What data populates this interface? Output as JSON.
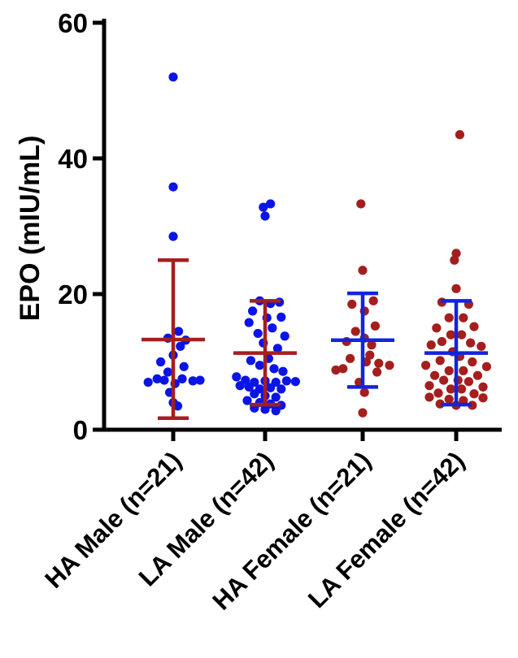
{
  "chart_data": {
    "type": "scatter",
    "ylabel": "EPO (mIU/mL)",
    "ylim": [
      0,
      60
    ],
    "yticks": [
      0,
      20,
      40,
      60
    ],
    "grid": false,
    "categories": [
      "HA Male (n=21)",
      "LA Male (n=42)",
      "HA Female (n=21)",
      "LA Female (n=42)"
    ],
    "series": [
      {
        "point_color": "#0a14e6",
        "bar_color": "#a51e1e",
        "mean": 13.3,
        "sd_low": 1.7,
        "sd_high": 25.0,
        "points": [
          {
            "x": 0.0,
            "y": 52.0
          },
          {
            "x": 0.0,
            "y": 35.8
          },
          {
            "x": 0.0,
            "y": 28.5
          },
          {
            "x": 0.06,
            "y": 14.5
          },
          {
            "x": -0.06,
            "y": 13.5
          },
          {
            "x": 0.14,
            "y": 13.2
          },
          {
            "x": 0.08,
            "y": 12.3
          },
          {
            "x": 0.0,
            "y": 11.0
          },
          {
            "x": -0.14,
            "y": 10.0
          },
          {
            "x": 0.12,
            "y": 9.3
          },
          {
            "x": -0.06,
            "y": 8.5
          },
          {
            "x": -0.18,
            "y": 7.5
          },
          {
            "x": -0.1,
            "y": 7.3
          },
          {
            "x": 0.1,
            "y": 7.5
          },
          {
            "x": 0.22,
            "y": 7.2
          },
          {
            "x": 0.3,
            "y": 7.3
          },
          {
            "x": -0.28,
            "y": 7.0
          },
          {
            "x": 0.02,
            "y": 6.8
          },
          {
            "x": -0.04,
            "y": 5.5
          },
          {
            "x": 0.0,
            "y": 4.0
          },
          {
            "x": 0.05,
            "y": 3.5
          }
        ]
      },
      {
        "point_color": "#0a14e6",
        "bar_color": "#a51e1e",
        "mean": 11.3,
        "sd_low": 3.7,
        "sd_high": 19.0,
        "points": [
          {
            "x": 0.06,
            "y": 33.3
          },
          {
            "x": -0.02,
            "y": 32.8
          },
          {
            "x": 0.0,
            "y": 31.5
          },
          {
            "x": -0.06,
            "y": 19.0
          },
          {
            "x": 0.06,
            "y": 18.6
          },
          {
            "x": 0.16,
            "y": 18.8
          },
          {
            "x": -0.14,
            "y": 17.5
          },
          {
            "x": 0.02,
            "y": 16.5
          },
          {
            "x": 0.18,
            "y": 16.6
          },
          {
            "x": -0.18,
            "y": 15.8
          },
          {
            "x": 0.08,
            "y": 15.0
          },
          {
            "x": -0.08,
            "y": 14.2
          },
          {
            "x": 0.22,
            "y": 13.8
          },
          {
            "x": -0.02,
            "y": 12.8
          },
          {
            "x": 0.14,
            "y": 12.0
          },
          {
            "x": -0.16,
            "y": 10.2
          },
          {
            "x": 0.04,
            "y": 10.5
          },
          {
            "x": -0.06,
            "y": 9.5
          },
          {
            "x": 0.1,
            "y": 9.0
          },
          {
            "x": 0.2,
            "y": 8.6
          },
          {
            "x": -0.32,
            "y": 7.8
          },
          {
            "x": -0.22,
            "y": 7.3
          },
          {
            "x": -0.12,
            "y": 7.0
          },
          {
            "x": 0.0,
            "y": 7.2
          },
          {
            "x": 0.12,
            "y": 7.0
          },
          {
            "x": 0.24,
            "y": 7.2
          },
          {
            "x": 0.34,
            "y": 7.1
          },
          {
            "x": -0.28,
            "y": 6.5
          },
          {
            "x": -0.18,
            "y": 6.3
          },
          {
            "x": -0.06,
            "y": 6.0
          },
          {
            "x": 0.06,
            "y": 6.2
          },
          {
            "x": 0.18,
            "y": 6.0
          },
          {
            "x": -0.12,
            "y": 5.3
          },
          {
            "x": 0.0,
            "y": 5.0
          },
          {
            "x": 0.12,
            "y": 4.8
          },
          {
            "x": -0.2,
            "y": 4.3
          },
          {
            "x": -0.06,
            "y": 4.0
          },
          {
            "x": 0.06,
            "y": 3.8
          },
          {
            "x": 0.18,
            "y": 3.6
          },
          {
            "x": -0.12,
            "y": 3.2
          },
          {
            "x": 0.0,
            "y": 3.0
          },
          {
            "x": 0.12,
            "y": 2.8
          }
        ]
      },
      {
        "point_color": "#a51e1e",
        "bar_color": "#1024e0",
        "mean": 13.2,
        "sd_low": 6.3,
        "sd_high": 20.1,
        "points": [
          {
            "x": -0.02,
            "y": 33.3
          },
          {
            "x": 0.0,
            "y": 23.5
          },
          {
            "x": 0.12,
            "y": 19.0
          },
          {
            "x": -0.12,
            "y": 18.5
          },
          {
            "x": 0.02,
            "y": 17.5
          },
          {
            "x": 0.14,
            "y": 15.3
          },
          {
            "x": -0.08,
            "y": 14.5
          },
          {
            "x": 0.02,
            "y": 13.5
          },
          {
            "x": -0.18,
            "y": 13.0
          },
          {
            "x": 0.1,
            "y": 12.5
          },
          {
            "x": 0.08,
            "y": 11.0
          },
          {
            "x": -0.14,
            "y": 10.5
          },
          {
            "x": 0.04,
            "y": 10.0
          },
          {
            "x": 0.18,
            "y": 9.8
          },
          {
            "x": 0.3,
            "y": 9.5
          },
          {
            "x": -0.22,
            "y": 9.0
          },
          {
            "x": -0.3,
            "y": 8.8
          },
          {
            "x": 0.16,
            "y": 8.5
          },
          {
            "x": -0.04,
            "y": 7.0
          },
          {
            "x": 0.02,
            "y": 5.5
          },
          {
            "x": 0.0,
            "y": 2.5
          }
        ]
      },
      {
        "point_color": "#a51e1e",
        "bar_color": "#1024e0",
        "mean": 11.3,
        "sd_low": 3.7,
        "sd_high": 19.0,
        "points": [
          {
            "x": 0.04,
            "y": 43.5
          },
          {
            "x": 0.0,
            "y": 26.0
          },
          {
            "x": -0.02,
            "y": 25.0
          },
          {
            "x": 0.0,
            "y": 20.8
          },
          {
            "x": -0.16,
            "y": 18.8
          },
          {
            "x": 0.14,
            "y": 18.5
          },
          {
            "x": -0.08,
            "y": 16.5
          },
          {
            "x": 0.08,
            "y": 16.5
          },
          {
            "x": -0.22,
            "y": 15.0
          },
          {
            "x": 0.2,
            "y": 15.2
          },
          {
            "x": -0.06,
            "y": 14.0
          },
          {
            "x": 0.06,
            "y": 14.0
          },
          {
            "x": -0.16,
            "y": 13.0
          },
          {
            "x": 0.16,
            "y": 12.8
          },
          {
            "x": -0.28,
            "y": 12.5
          },
          {
            "x": 0.28,
            "y": 12.3
          },
          {
            "x": -0.04,
            "y": 11.5
          },
          {
            "x": 0.04,
            "y": 10.8
          },
          {
            "x": -0.18,
            "y": 10.2
          },
          {
            "x": 0.18,
            "y": 10.0
          },
          {
            "x": -0.34,
            "y": 9.5
          },
          {
            "x": 0.34,
            "y": 9.3
          },
          {
            "x": -0.08,
            "y": 8.7
          },
          {
            "x": 0.08,
            "y": 8.7
          },
          {
            "x": -0.24,
            "y": 8.0
          },
          {
            "x": 0.24,
            "y": 8.0
          },
          {
            "x": -0.14,
            "y": 7.3
          },
          {
            "x": 0.02,
            "y": 7.3
          },
          {
            "x": 0.14,
            "y": 7.1
          },
          {
            "x": -0.3,
            "y": 6.5
          },
          {
            "x": 0.3,
            "y": 6.3
          },
          {
            "x": -0.06,
            "y": 6.0
          },
          {
            "x": 0.06,
            "y": 6.0
          },
          {
            "x": -0.2,
            "y": 5.4
          },
          {
            "x": 0.2,
            "y": 5.3
          },
          {
            "x": -0.3,
            "y": 4.8
          },
          {
            "x": 0.3,
            "y": 4.7
          },
          {
            "x": -0.08,
            "y": 4.5
          },
          {
            "x": 0.08,
            "y": 4.3
          },
          {
            "x": -0.18,
            "y": 3.8
          },
          {
            "x": 0.0,
            "y": 3.6
          },
          {
            "x": 0.18,
            "y": 3.6
          }
        ]
      }
    ]
  }
}
